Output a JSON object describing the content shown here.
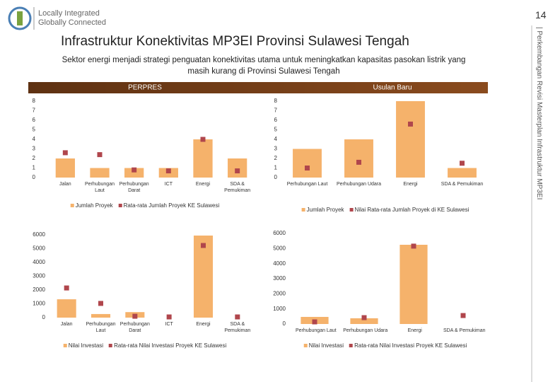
{
  "logo": {
    "line1": "Locally Integrated",
    "line2": "Globally Connected"
  },
  "page_number": "14",
  "side_text": "| Perkembangan Revisi Masterplan Infrastruktur MP3EI",
  "title": "Infrastruktur Konektivitas MP3EI Provinsi Sulawesi Tengah",
  "subtitle": "Sektor energi menjadi strategi penguatan konektivitas utama untuk meningkatkan kapasitas pasokan listrik yang masih kurang di  Provinsi Sulawesi Tengah",
  "chart_data": [
    {
      "type": "bar",
      "header": "PERPRES",
      "categories": [
        "Jalan",
        "Perhubungan Laut",
        "Perhubungan Darat",
        "ICT",
        "Energi",
        "SDA & Pemukiman"
      ],
      "series": [
        {
          "name": "Jumlah Proyek",
          "type": "bar",
          "color": "#f5b26b",
          "values": [
            2,
            1,
            1,
            1,
            4,
            2
          ]
        },
        {
          "name": "Rata-rata Jumlah Proyek KE Sulawesi",
          "type": "scatter",
          "color": "#b0464c",
          "values": [
            2.6,
            2.4,
            0.8,
            0.7,
            4.0,
            0.7
          ]
        }
      ],
      "ylim": [
        0,
        8
      ],
      "yticks": [
        0,
        1,
        2,
        3,
        4,
        5,
        6,
        7,
        8
      ]
    },
    {
      "type": "bar",
      "header": "Usulan Baru",
      "categories": [
        "Perhubungan Laut",
        "Perhubungan Udara",
        "Energi",
        "SDA & Pemukiman"
      ],
      "series": [
        {
          "name": "Jumlah Proyek",
          "type": "bar",
          "color": "#f5b26b",
          "values": [
            3,
            4,
            8,
            1
          ]
        },
        {
          "name": "Nilai Rata-rata Jumlah Proyek di KE Sulawesi",
          "type": "scatter",
          "color": "#b0464c",
          "values": [
            1.0,
            1.6,
            5.6,
            1.5
          ]
        }
      ],
      "ylim": [
        0,
        8
      ],
      "yticks": [
        0,
        1,
        2,
        3,
        4,
        5,
        6,
        7,
        8
      ]
    },
    {
      "type": "bar",
      "categories": [
        "Jalan",
        "Perhubungan Laut",
        "Perhubungan Darat",
        "ICT",
        "Energi",
        "SDA & Pemukiman"
      ],
      "series": [
        {
          "name": "Nilai Investasi",
          "type": "bar",
          "color": "#f5b26b",
          "values": [
            1330,
            260,
            400,
            0,
            5950,
            0
          ]
        },
        {
          "name": "Rata-rata Nilai Investasi Proyek KE Sulawesi",
          "type": "scatter",
          "color": "#b0464c",
          "values": [
            2150,
            1030,
            100,
            50,
            5230,
            50
          ]
        }
      ],
      "ylim": [
        0,
        6000
      ],
      "yticks": [
        0,
        1000,
        2000,
        3000,
        4000,
        5000,
        6000
      ]
    },
    {
      "type": "bar",
      "categories": [
        "Perhubungan Laut",
        "Perhubungan Udara",
        "Energi",
        "SDA & Pemukiman"
      ],
      "series": [
        {
          "name": "Nilai Investasi",
          "type": "bar",
          "color": "#f5b26b",
          "values": [
            470,
            380,
            5250,
            0
          ]
        },
        {
          "name": "Rata-rata Nilai Investasi Proyek KE Sulawesi",
          "type": "scatter",
          "color": "#b0464c",
          "values": [
            140,
            420,
            5160,
            560
          ]
        }
      ],
      "ylim": [
        0,
        6000
      ],
      "yticks": [
        0,
        1000,
        2000,
        3000,
        4000,
        5000,
        6000
      ]
    }
  ]
}
